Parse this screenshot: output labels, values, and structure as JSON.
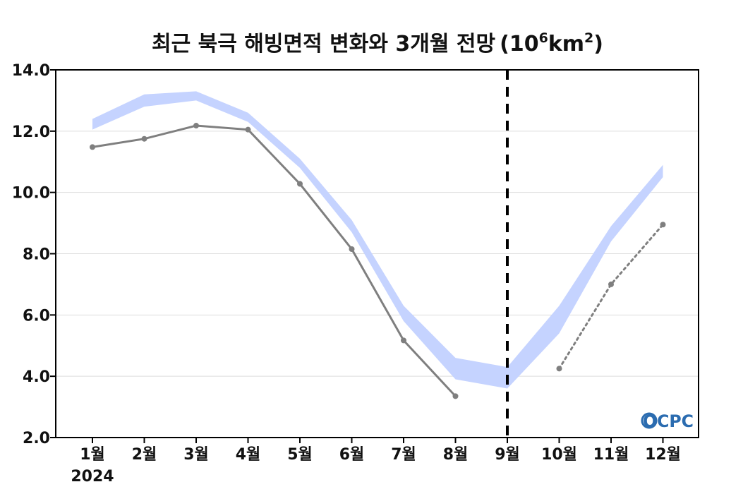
{
  "chart_data": {
    "type": "line",
    "title": "최근 북극 해빙면적 변화와 3개월 전망",
    "title_unit": {
      "open": "(10",
      "exp": "6",
      "mid": "km",
      "exp2": "2",
      "close": ")"
    },
    "x_labels": [
      "1월",
      "2월",
      "3월",
      "4월",
      "5월",
      "6월",
      "7월",
      "8월",
      "9월",
      "10월",
      "11월",
      "12월"
    ],
    "year_label": "2024",
    "y_ticks": [
      "2.0",
      "4.0",
      "6.0",
      "8.0",
      "10.0",
      "12.0",
      "14.0"
    ],
    "ylim": [
      2.0,
      14.0
    ],
    "grid": true,
    "forecast_divider_month": "9월",
    "colors": {
      "band": "#c5d3ff",
      "observed": "#7f7f7f",
      "forecast": "#7f7f7f",
      "divider": "#000000",
      "grid": "#dddddd",
      "logo": "#2b6cb0"
    },
    "series": [
      {
        "kind": "band",
        "x": [
          "1월",
          "2월",
          "3월",
          "4월",
          "5월",
          "6월",
          "7월",
          "8월",
          "9월",
          "10월",
          "11월",
          "12월"
        ],
        "upper": [
          12.4,
          13.2,
          13.3,
          12.6,
          11.1,
          9.1,
          6.3,
          4.6,
          4.3,
          6.3,
          8.9,
          10.9
        ],
        "lower": [
          12.05,
          12.8,
          13.0,
          12.3,
          10.8,
          8.7,
          5.8,
          3.9,
          3.6,
          5.4,
          8.4,
          10.5
        ]
      },
      {
        "kind": "observed",
        "x": [
          "1월",
          "2월",
          "3월",
          "4월",
          "5월",
          "6월",
          "7월",
          "8월"
        ],
        "y": [
          11.48,
          11.75,
          12.18,
          12.05,
          10.28,
          8.15,
          5.17,
          3.35
        ]
      },
      {
        "kind": "forecast",
        "x": [
          "10월",
          "11월",
          "12월"
        ],
        "y": [
          4.25,
          7.0,
          8.95
        ]
      }
    ],
    "logo_text": "OCPC"
  }
}
